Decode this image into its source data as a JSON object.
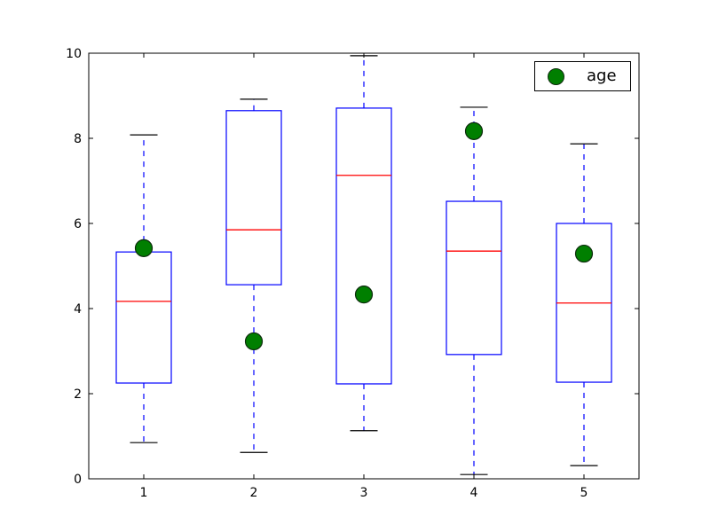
{
  "chart_data": {
    "type": "boxplot",
    "title": "",
    "xlabel": "",
    "ylabel": "",
    "xlim": [
      0.5,
      5.5
    ],
    "ylim": [
      0,
      10
    ],
    "x_tick_labels": [
      "1",
      "2",
      "3",
      "4",
      "5"
    ],
    "x_tick_values": [
      1,
      2,
      3,
      4,
      5
    ],
    "y_tick_labels": [
      "0",
      "2",
      "4",
      "6",
      "8",
      "10"
    ],
    "y_tick_values": [
      0,
      2,
      4,
      6,
      8,
      10
    ],
    "grid": false,
    "boxes": [
      {
        "position": 1,
        "whisker_low": 0.85,
        "q1": 2.25,
        "median": 4.17,
        "q3": 5.33,
        "whisker_high": 8.08
      },
      {
        "position": 2,
        "whisker_low": 0.62,
        "q1": 4.56,
        "median": 5.85,
        "q3": 8.65,
        "whisker_high": 8.92
      },
      {
        "position": 3,
        "whisker_low": 1.13,
        "q1": 2.23,
        "median": 7.13,
        "q3": 8.71,
        "whisker_high": 9.94
      },
      {
        "position": 4,
        "whisker_low": 0.1,
        "q1": 2.92,
        "median": 5.35,
        "q3": 6.52,
        "whisker_high": 8.73
      },
      {
        "position": 5,
        "whisker_low": 0.31,
        "q1": 2.27,
        "median": 4.13,
        "q3": 6.0,
        "whisker_high": 7.87
      }
    ],
    "scatter_series": {
      "name": "age",
      "x": [
        1,
        2,
        3,
        4,
        5
      ],
      "y": [
        5.42,
        3.23,
        4.33,
        8.17,
        5.29
      ]
    },
    "legend": {
      "label": "age",
      "position": "upper right",
      "marker": "circle-icon"
    },
    "colors": {
      "box": "#0000ff",
      "median": "#ff0000",
      "whisker": "#0000ff",
      "cap": "#000000",
      "marker_fill": "#007f00",
      "marker_edge": "#0d2b0d",
      "axis": "#000000",
      "background": "#ffffff"
    }
  }
}
